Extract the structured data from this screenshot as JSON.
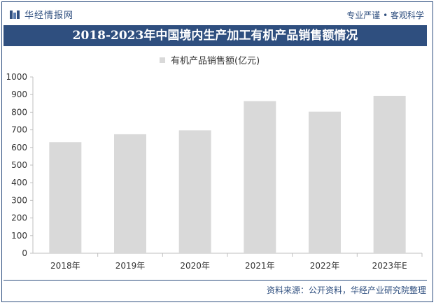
{
  "header": {
    "brand": "华经情报网",
    "slogan": "专业严谨 • 客观科学"
  },
  "chart_data": {
    "type": "bar",
    "title": "2018-2023年中国境内生产加工有机产品销售额情况",
    "categories": [
      "2018年",
      "2019年",
      "2020年",
      "2021年",
      "2022年",
      "2023年E"
    ],
    "series": [
      {
        "name": "有机产品销售额(亿元)",
        "values": [
          630,
          675,
          697,
          863,
          803,
          893
        ]
      }
    ],
    "ylim": [
      0,
      1000
    ],
    "yticks": [
      0,
      100,
      200,
      300,
      400,
      500,
      600,
      700,
      800,
      900,
      1000
    ],
    "grid": false,
    "legend": "top-center",
    "bar_color": "#d9d9d9"
  },
  "footer": {
    "source": "资料来源：公开资料，华经产业研究院整理"
  },
  "colors": {
    "accent": "#2f4f7f"
  }
}
